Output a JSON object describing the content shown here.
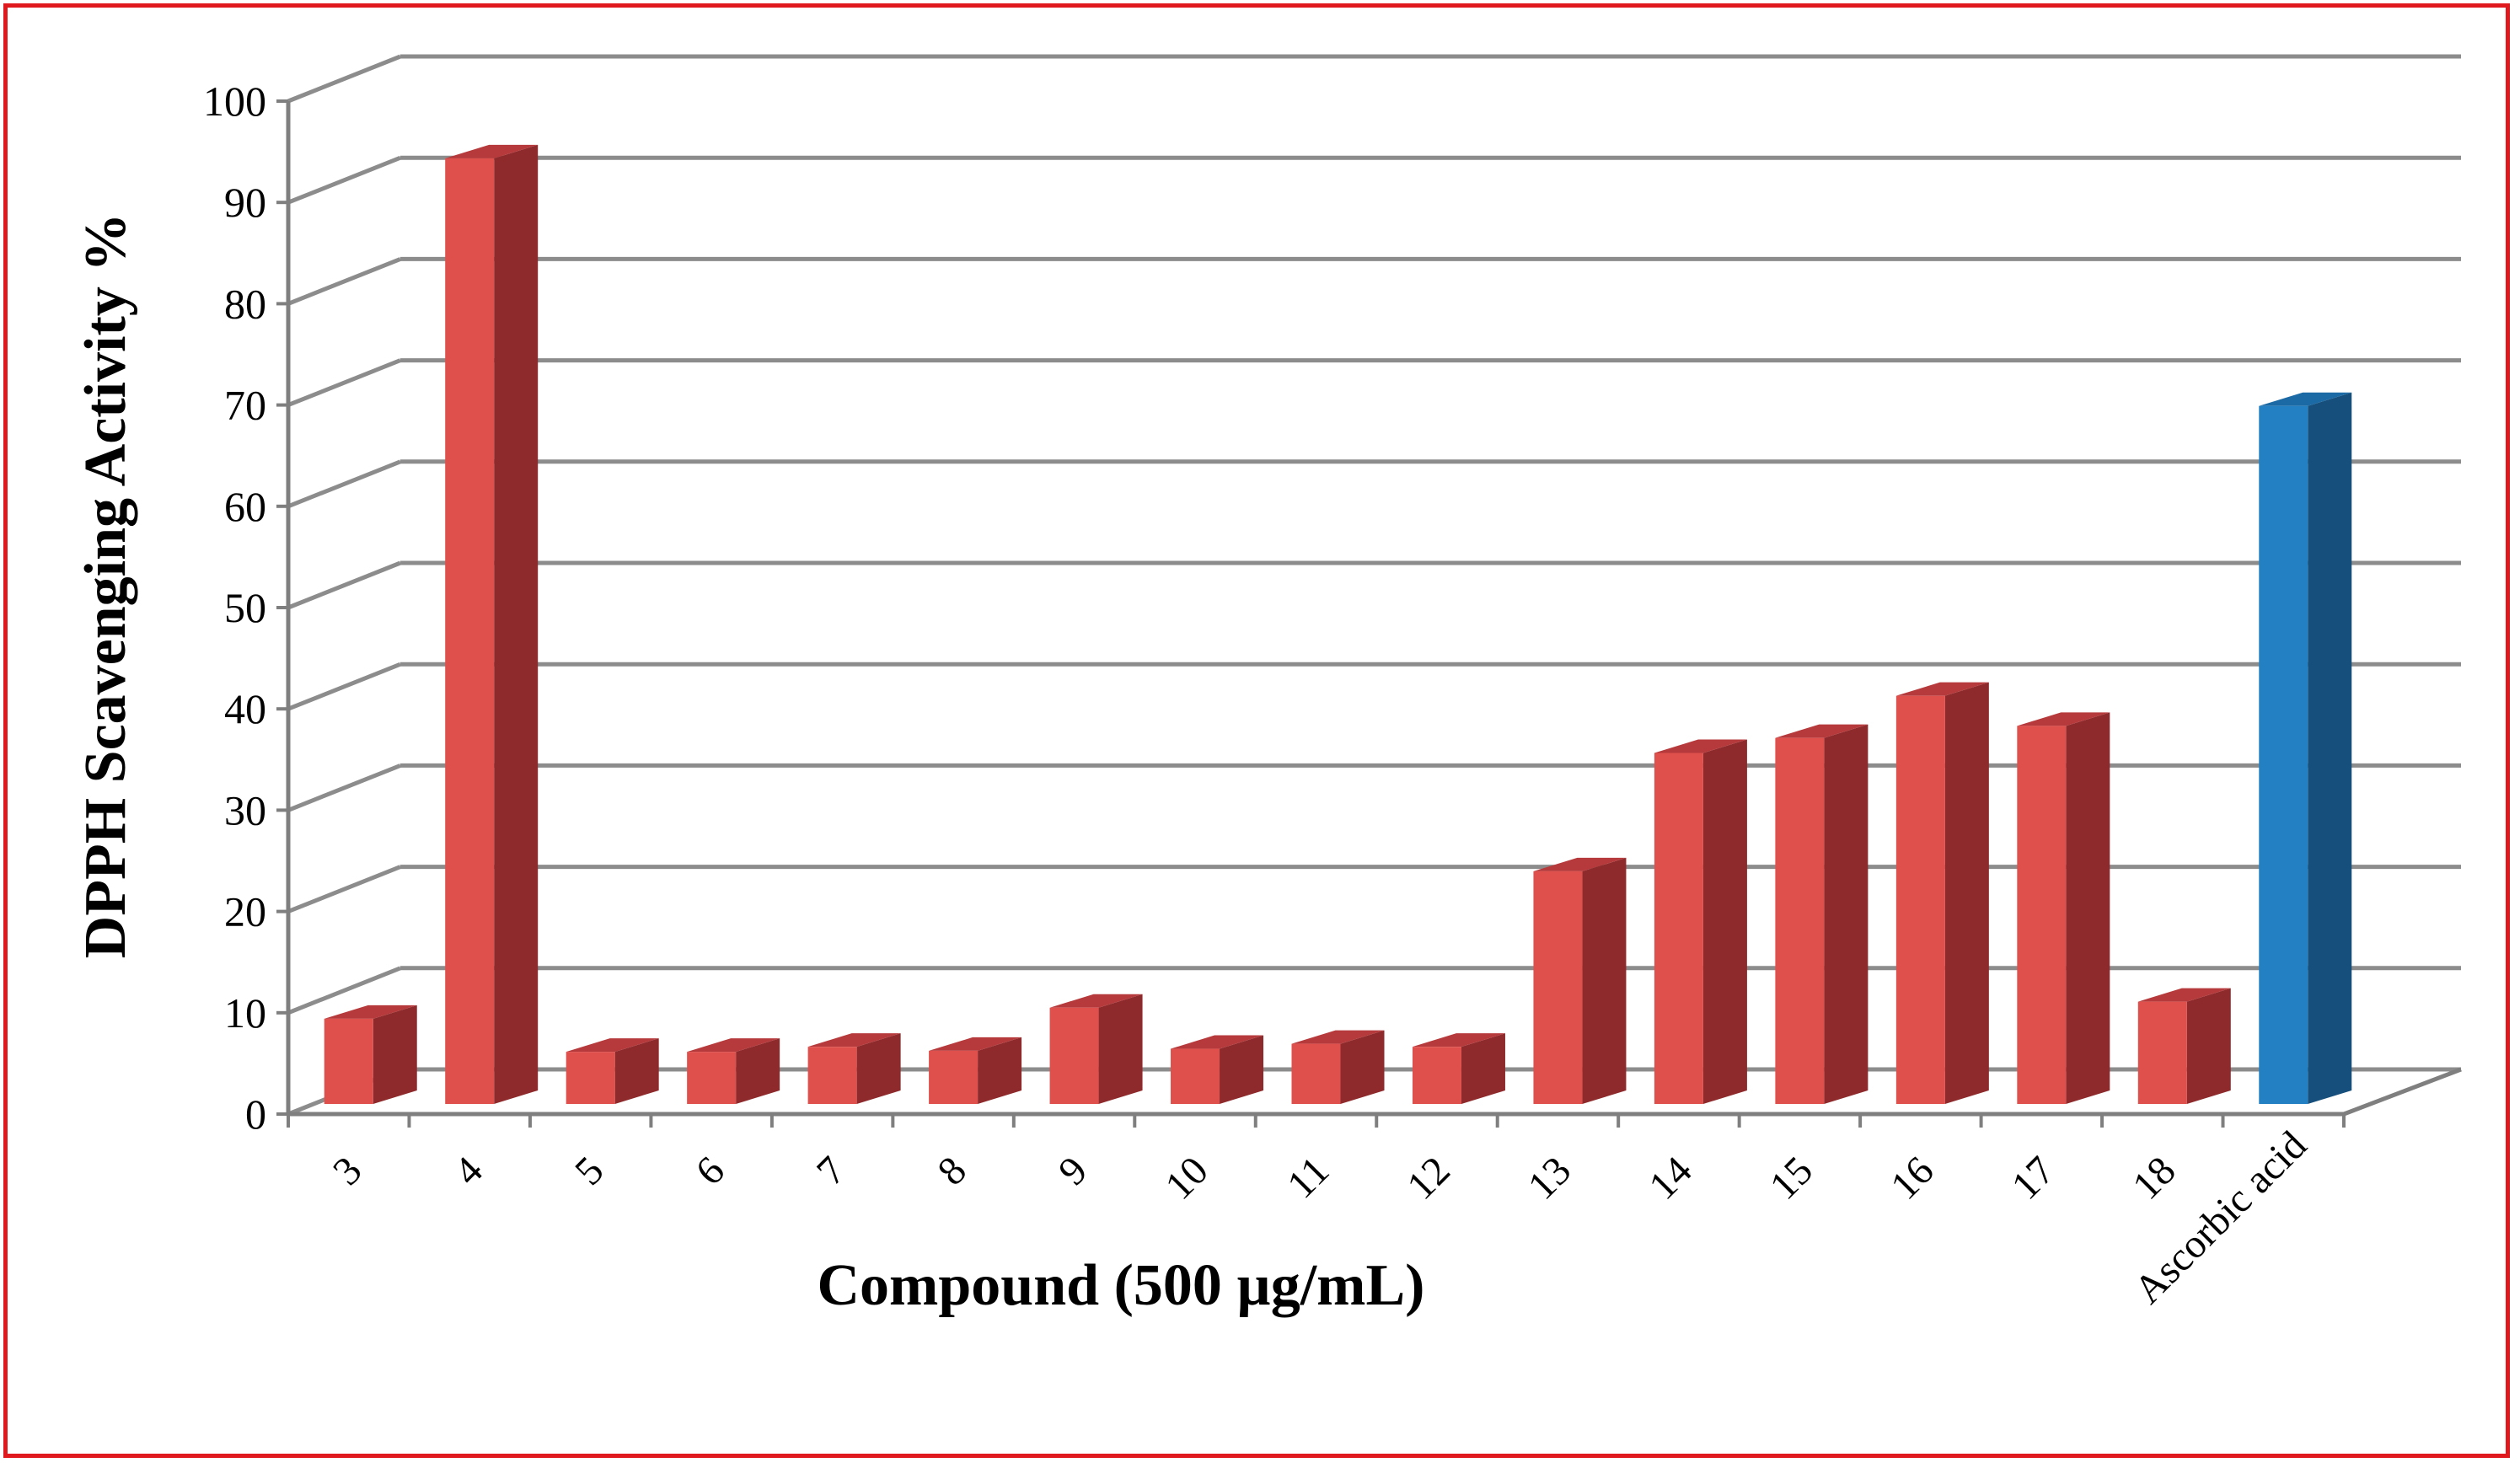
{
  "chart_data": {
    "type": "bar",
    "style": "3d-column",
    "categories": [
      "3",
      "4",
      "5",
      "6",
      "7",
      "8",
      "9",
      "10",
      "11",
      "12",
      "13",
      "14",
      "15",
      "16",
      "17",
      "18",
      "Ascorbic acid"
    ],
    "series": [
      {
        "values": [
          8.5,
          94.3,
          5.2,
          5.2,
          5.7,
          5.3,
          9.6,
          5.5,
          6.0,
          5.7,
          23.2,
          35.0,
          36.5,
          40.7,
          37.7,
          10.2,
          69.6
        ]
      }
    ],
    "xlabel": "Compound (500 µg/mL)",
    "ylabel": "DPPH Scavenging Activity %",
    "ylim": [
      0,
      100
    ],
    "yticks": [
      0,
      10,
      20,
      30,
      40,
      50,
      60,
      70,
      80,
      90,
      100
    ],
    "grid": true,
    "legend": "none",
    "colors": {
      "bar_front": "#df504d",
      "bar_side": "#8e2a2c",
      "bar_top": "#b63a3b",
      "highlight_front": "#2381c3",
      "highlight_side": "#164f7b",
      "highlight_top": "#1b6aa5",
      "gridline": "#8c8c8c",
      "axis": "#7f7f7f",
      "frame": "#e0191f",
      "text": "#000000"
    },
    "highlight_category": "Ascorbic acid"
  }
}
